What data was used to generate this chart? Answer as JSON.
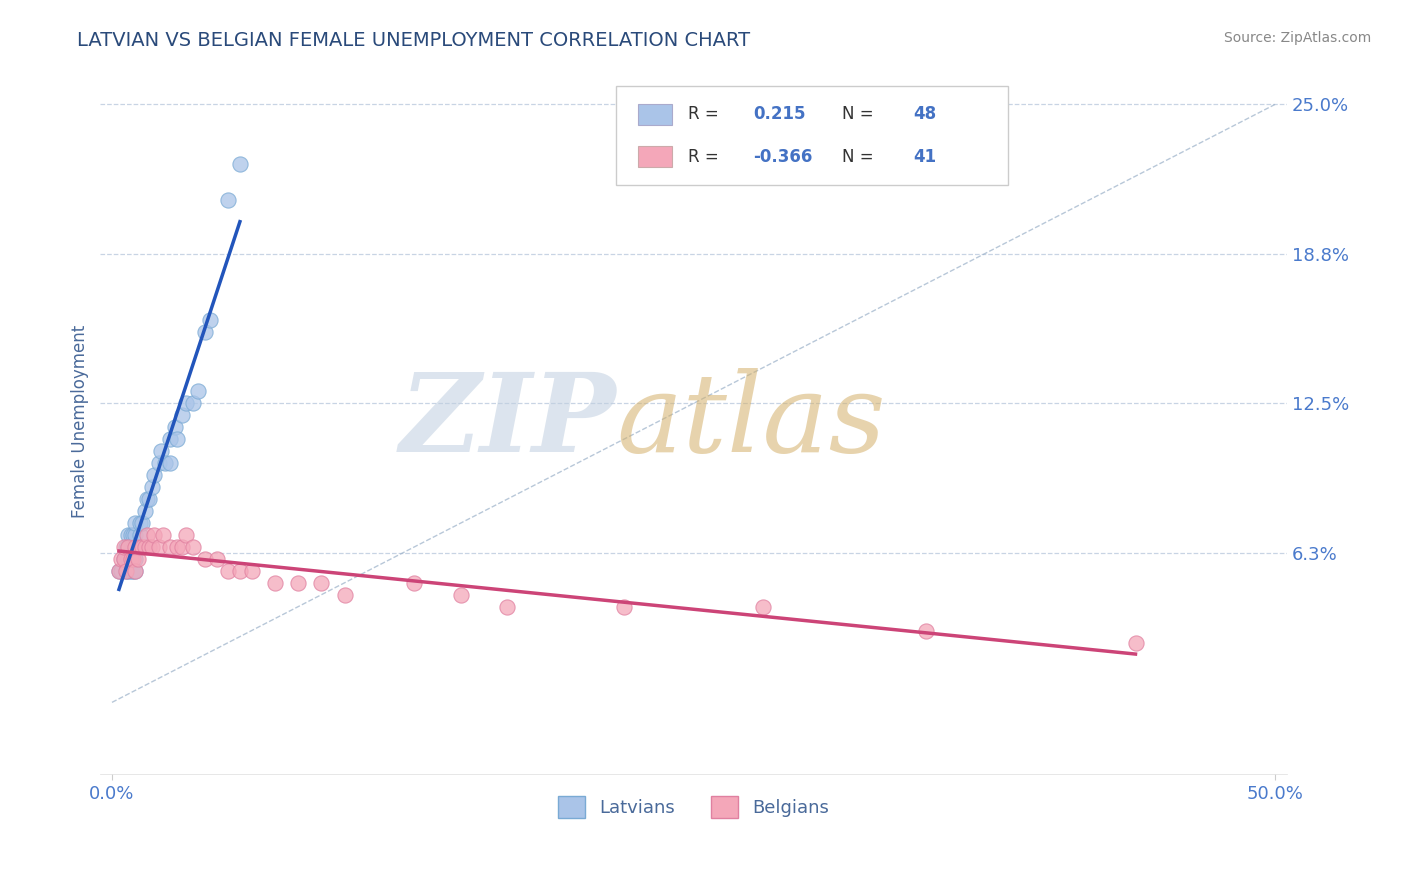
{
  "title": "LATVIAN VS BELGIAN FEMALE UNEMPLOYMENT CORRELATION CHART",
  "source": "Source: ZipAtlas.com",
  "ylabel": "Female Unemployment",
  "xlim": [
    -0.005,
    0.505
  ],
  "ylim": [
    -0.03,
    0.265
  ],
  "yticks": [
    0.0625,
    0.125,
    0.1875,
    0.25
  ],
  "ytick_labels": [
    "6.3%",
    "12.5%",
    "18.8%",
    "25.0%"
  ],
  "xticks": [
    0.0,
    0.5
  ],
  "xtick_labels": [
    "0.0%",
    "50.0%"
  ],
  "latvian_R": 0.215,
  "latvian_N": 48,
  "belgian_R": -0.366,
  "belgian_N": 41,
  "latvian_color": "#aac4e8",
  "latvian_edge_color": "#7aaad4",
  "latvian_line_color": "#2255bb",
  "belgian_color": "#f4a7b9",
  "belgian_edge_color": "#e080a0",
  "belgian_line_color": "#cc4477",
  "diag_line_color": "#9ab0c8",
  "background_color": "#ffffff",
  "grid_color": "#c8d4e4",
  "title_color": "#2a4a7a",
  "axis_label_color": "#4a6a9a",
  "tick_label_color": "#4a7acc",
  "legend_R_color": "#4472c4",
  "source_color": "#888888",
  "latvians_scatter_x": [
    0.003,
    0.004,
    0.005,
    0.005,
    0.006,
    0.006,
    0.006,
    0.007,
    0.007,
    0.007,
    0.007,
    0.007,
    0.008,
    0.008,
    0.008,
    0.008,
    0.009,
    0.009,
    0.009,
    0.01,
    0.01,
    0.01,
    0.01,
    0.01,
    0.01,
    0.012,
    0.012,
    0.013,
    0.014,
    0.015,
    0.016,
    0.017,
    0.018,
    0.02,
    0.021,
    0.023,
    0.025,
    0.025,
    0.027,
    0.028,
    0.03,
    0.032,
    0.035,
    0.037,
    0.04,
    0.042,
    0.05,
    0.055
  ],
  "latvians_scatter_y": [
    0.055,
    0.055,
    0.06,
    0.06,
    0.055,
    0.06,
    0.065,
    0.055,
    0.06,
    0.06,
    0.065,
    0.07,
    0.055,
    0.06,
    0.065,
    0.07,
    0.055,
    0.065,
    0.07,
    0.055,
    0.06,
    0.065,
    0.065,
    0.07,
    0.075,
    0.07,
    0.075,
    0.075,
    0.08,
    0.085,
    0.085,
    0.09,
    0.095,
    0.1,
    0.105,
    0.1,
    0.1,
    0.11,
    0.115,
    0.11,
    0.12,
    0.125,
    0.125,
    0.13,
    0.155,
    0.16,
    0.21,
    0.225
  ],
  "belgians_scatter_x": [
    0.003,
    0.004,
    0.005,
    0.005,
    0.006,
    0.007,
    0.008,
    0.009,
    0.01,
    0.01,
    0.011,
    0.012,
    0.013,
    0.014,
    0.015,
    0.016,
    0.017,
    0.018,
    0.02,
    0.022,
    0.025,
    0.028,
    0.03,
    0.032,
    0.035,
    0.04,
    0.045,
    0.05,
    0.055,
    0.06,
    0.07,
    0.08,
    0.09,
    0.1,
    0.13,
    0.15,
    0.17,
    0.22,
    0.28,
    0.35,
    0.44
  ],
  "belgians_scatter_y": [
    0.055,
    0.06,
    0.06,
    0.065,
    0.055,
    0.065,
    0.06,
    0.06,
    0.055,
    0.065,
    0.06,
    0.065,
    0.065,
    0.065,
    0.07,
    0.065,
    0.065,
    0.07,
    0.065,
    0.07,
    0.065,
    0.065,
    0.065,
    0.07,
    0.065,
    0.06,
    0.06,
    0.055,
    0.055,
    0.055,
    0.05,
    0.05,
    0.05,
    0.045,
    0.05,
    0.045,
    0.04,
    0.04,
    0.04,
    0.03,
    0.025
  ]
}
